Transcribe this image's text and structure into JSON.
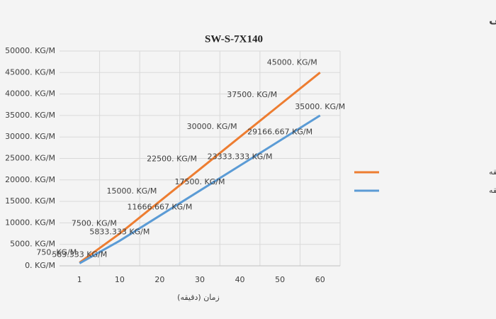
{
  "chart_data": {
    "type": "line",
    "title": "کمینه و بیشینه نمودار شستشوی ماسه‌شور حلزونی",
    "subtitle": "SW-S-7X140",
    "x_label": "زمان (دقیقه)",
    "categories": [
      "1",
      "10",
      "20",
      "30",
      "40",
      "50",
      "60"
    ],
    "series": [
      {
        "name": "ی تولید در دقیقه",
        "color": "#ed7d31",
        "values": [
          750,
          7500,
          15000,
          22500,
          30000,
          37500,
          45000
        ],
        "value_labels": [
          "750. KG/M",
          "7500. KG/M",
          "15000. KG/M",
          "22500. KG/M",
          "30000. KG/M",
          "37500. KG/M",
          "45000. KG/M"
        ]
      },
      {
        "name": "ی تولید در دقیقه",
        "color": "#5b9bd5",
        "values": [
          583.333,
          5833.333,
          11666.667,
          17500,
          23333.333,
          29166.667,
          35000
        ],
        "value_labels": [
          "583.333 KG/M",
          "5833.333 KG/M",
          "11666.667 KG/M",
          "17500. KG/M",
          "23333.333 KG/M",
          "29166.667 KG/M",
          "35000. KG/M"
        ]
      }
    ],
    "ylim": [
      0,
      50000
    ],
    "yticks": [
      {
        "value": 0,
        "label": "0. KG/M"
      },
      {
        "value": 5000,
        "label": "5000. KG/M"
      },
      {
        "value": 10000,
        "label": "10000. KG/M"
      },
      {
        "value": 15000,
        "label": "15000. KG/M"
      },
      {
        "value": 20000,
        "label": "20000. KG/M"
      },
      {
        "value": 25000,
        "label": "25000. KG/M"
      },
      {
        "value": 30000,
        "label": "30000. KG/M"
      },
      {
        "value": 35000,
        "label": "35000. KG/M"
      },
      {
        "value": 40000,
        "label": "40000. KG/M"
      },
      {
        "value": 45000,
        "label": "45000. KG/M"
      },
      {
        "value": 50000,
        "label": "50000. KG/M"
      }
    ],
    "grid": true,
    "legend": "right"
  }
}
